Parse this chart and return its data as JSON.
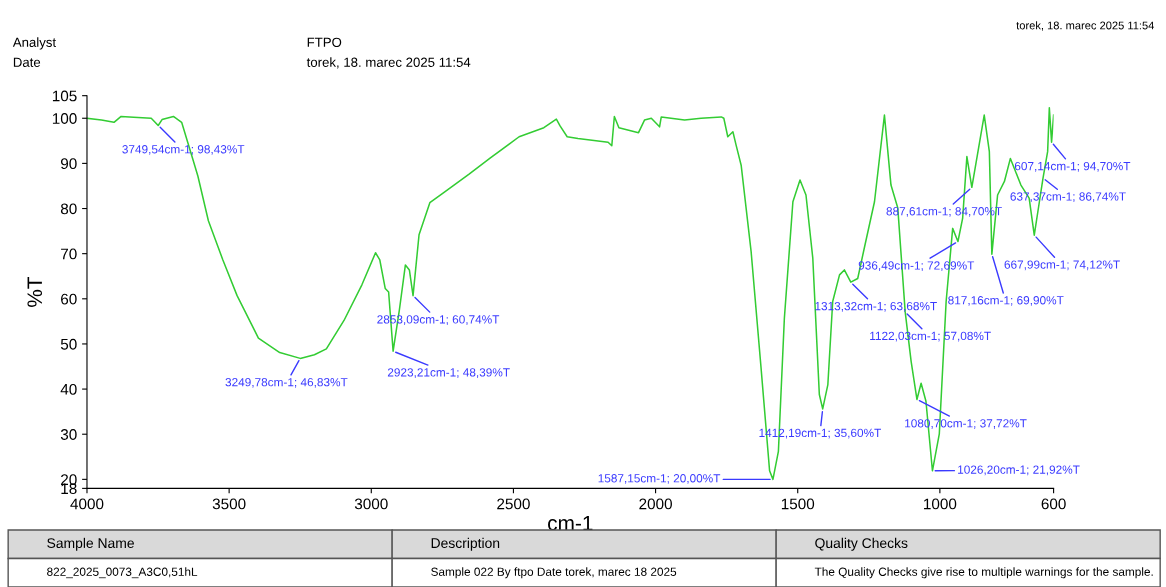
{
  "chart_data": {
    "type": "line",
    "xlabel": "cm-1",
    "ylabel": "%T",
    "xlim": [
      4000,
      600
    ],
    "ylim": [
      18,
      105
    ],
    "xticks": [
      4000,
      3500,
      3000,
      2500,
      2000,
      1500,
      1000,
      600
    ],
    "yticks": [
      18,
      20,
      30,
      40,
      50,
      60,
      70,
      80,
      90,
      100,
      105
    ],
    "x": [
      4000,
      3949,
      3905,
      3880,
      3836,
      3774,
      3749.54,
      3736,
      3696,
      3667,
      3629,
      3610,
      3573,
      3522,
      3472,
      3397,
      3322,
      3249.78,
      3200,
      3158,
      3096,
      3033,
      2985,
      2970,
      2951,
      2939,
      2923.21,
      2901,
      2880,
      2866,
      2853.09,
      2832,
      2794,
      2744,
      2656,
      2581,
      2480,
      2393,
      2349,
      2336,
      2311,
      2273,
      2167,
      2154,
      2145,
      2129,
      2060,
      2039,
      2015,
      1986,
      1980,
      1898,
      1840,
      1769,
      1760,
      1746,
      1728,
      1717,
      1699,
      1664,
      1629,
      1599,
      1587.15,
      1568,
      1547,
      1517,
      1492,
      1471,
      1447,
      1424,
      1412.19,
      1394,
      1377,
      1353,
      1336,
      1313.32,
      1289,
      1266,
      1230,
      1195,
      1172,
      1148,
      1122.03,
      1101,
      1080.7,
      1066,
      1049,
      1026.2,
      1002,
      978,
      955,
      936.49,
      920,
      905,
      887.61,
      844,
      826,
      817.16,
      797,
      773,
      752,
      715,
      686,
      667.99,
      650,
      637.37,
      621,
      615,
      607.14,
      600
    ],
    "series": [
      {
        "color": "#33cc33",
        "values": [
          100,
          99.6,
          99.1,
          100.4,
          100.2,
          100,
          98.4,
          99.7,
          100.4,
          99.1,
          91.2,
          87.2,
          77.3,
          68.6,
          60.7,
          51.3,
          48.1,
          46.8,
          47.6,
          48.9,
          55.2,
          63.1,
          70.2,
          68.6,
          62.3,
          61.5,
          48.4,
          57.6,
          67.5,
          66.4,
          60.7,
          74.2,
          81.3,
          83.6,
          87.6,
          91.2,
          95.9,
          97.9,
          99.8,
          98.3,
          95.9,
          95.5,
          94.7,
          93.9,
          100.4,
          97.9,
          96.8,
          99.6,
          100,
          98.1,
          100.3,
          99.6,
          100,
          100.3,
          100,
          95.9,
          97,
          94.1,
          89.6,
          70.5,
          44.7,
          21.9,
          20.0,
          26.2,
          55.7,
          81.5,
          86.3,
          83,
          69,
          38.8,
          35.6,
          41,
          59.4,
          65.3,
          66.4,
          63.7,
          64.5,
          71.2,
          81.5,
          100.7,
          85.2,
          80.1,
          57.1,
          46.1,
          37.7,
          41.3,
          37.3,
          21.9,
          30.1,
          59.4,
          75.6,
          72.7,
          77.8,
          91.5,
          84.7,
          100.7,
          92.6,
          69.9,
          83,
          86,
          91.1,
          85.2,
          82.3,
          74.1,
          81.5,
          86.7,
          92.6,
          102.3,
          94.7,
          100.7
        ]
      }
    ],
    "annotations": [
      {
        "text": "3749,54cm-1; 98,43%T",
        "x": 3749.54,
        "y": 98.43
      },
      {
        "text": "3249,78cm-1; 46,83%T",
        "x": 3249.78,
        "y": 46.83
      },
      {
        "text": "2923,21cm-1; 48,39%T",
        "x": 2923.21,
        "y": 48.39
      },
      {
        "text": "2853,09cm-1; 60,74%T",
        "x": 2853.09,
        "y": 60.74
      },
      {
        "text": "1587,15cm-1; 20,00%T",
        "x": 1587.15,
        "y": 20.0
      },
      {
        "text": "1412,19cm-1; 35,60%T",
        "x": 1412.19,
        "y": 35.6
      },
      {
        "text": "1313,32cm-1; 63,68%T",
        "x": 1313.32,
        "y": 63.68
      },
      {
        "text": "1122,03cm-1; 57,08%T",
        "x": 1122.03,
        "y": 57.08
      },
      {
        "text": "1080,70cm-1; 37,72%T",
        "x": 1080.7,
        "y": 37.72
      },
      {
        "text": "1026,20cm-1; 21,92%T",
        "x": 1026.2,
        "y": 21.92
      },
      {
        "text": "936,49cm-1; 72,69%T",
        "x": 936.49,
        "y": 72.69
      },
      {
        "text": "887,61cm-1; 84,70%T",
        "x": 887.61,
        "y": 84.7
      },
      {
        "text": "817,16cm-1; 69,90%T",
        "x": 817.16,
        "y": 69.9
      },
      {
        "text": "667,99cm-1; 74,12%T",
        "x": 667.99,
        "y": 74.12
      },
      {
        "text": "637,37cm-1; 86,74%T",
        "x": 637.37,
        "y": 86.74
      },
      {
        "text": "607,14cm-1; 94,70%T",
        "x": 607.14,
        "y": 94.7
      },
      "torek, 18. marec 2025 11:54",
      "Analyst",
      "FTPO",
      "Date",
      "torek, 18. marec 2025 11:54",
      "Sample Name",
      "Description",
      "Quality Checks",
      "822_2025_0073_A3C0,51hL",
      "Sample 022 By ftpo Date torek, marec 18 2025",
      "The Quality Checks give rise to multiple warnings for the sample."
    ]
  }
}
